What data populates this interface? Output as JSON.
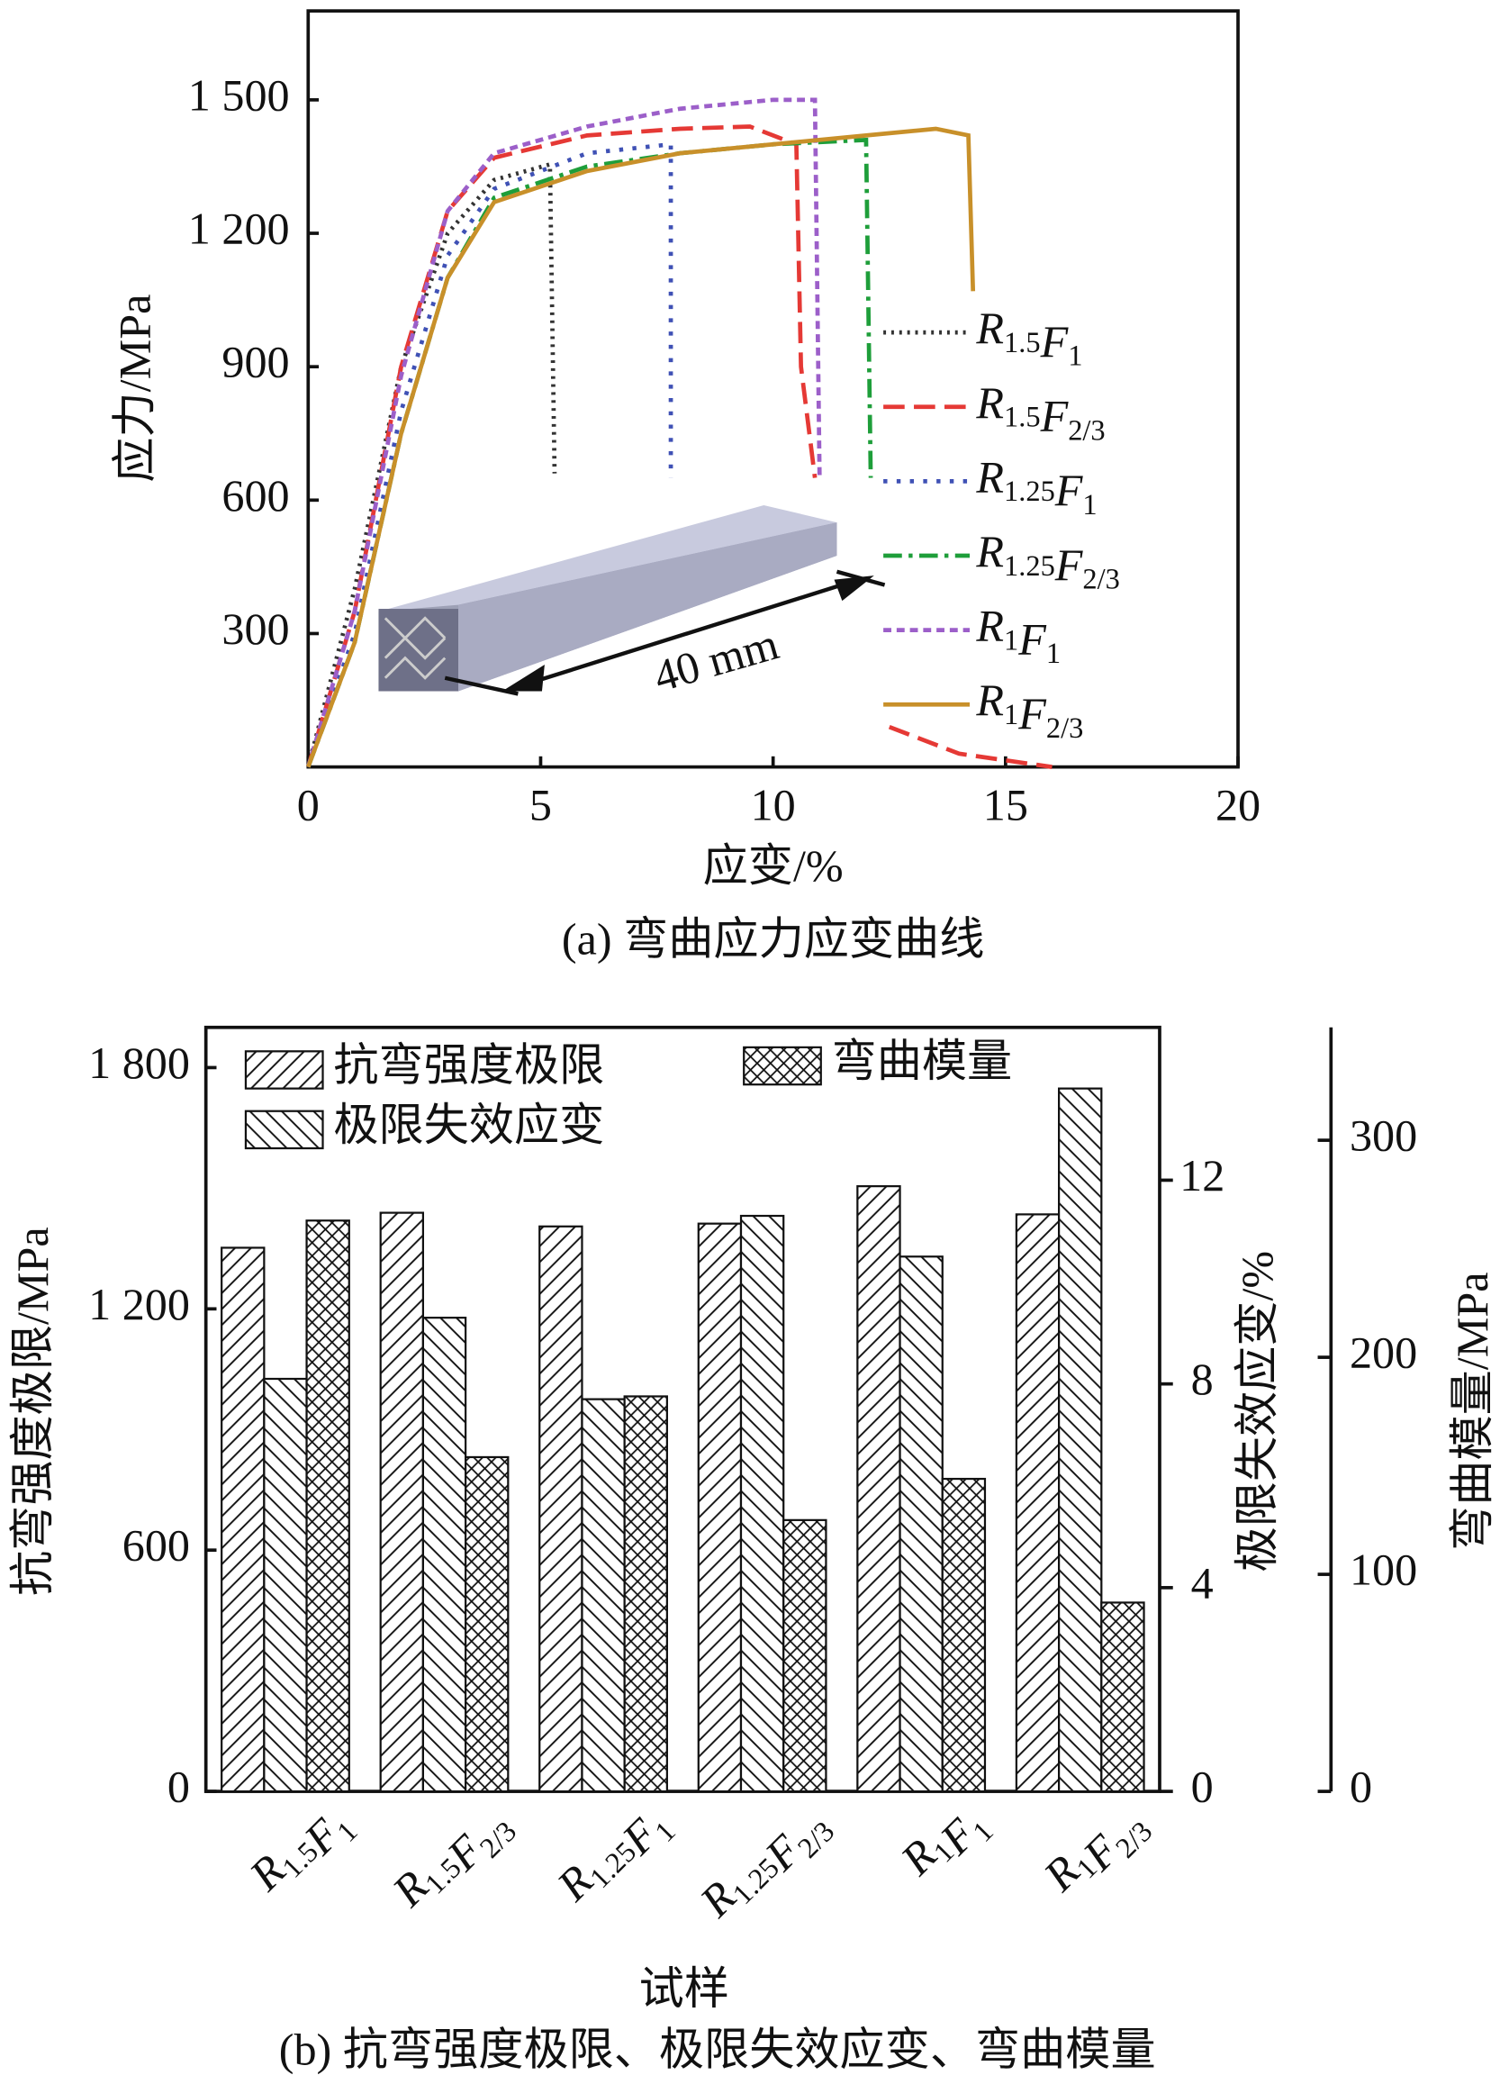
{
  "chart_data": [
    {
      "type": "line",
      "title": "(a) 弯曲应力应变曲线",
      "x_label": "应变/%",
      "y_label": "应力/MPa",
      "xlim": [
        0,
        20
      ],
      "xticks": [
        0,
        5,
        10,
        15,
        20
      ],
      "ylim": [
        0,
        1700
      ],
      "yticks": [
        {
          "value": 300,
          "label": "300"
        },
        {
          "value": 600,
          "label": "600"
        },
        {
          "value": 900,
          "label": "900"
        },
        {
          "value": 1200,
          "label": "1 200"
        },
        {
          "value": 1500,
          "label": "1 500"
        }
      ],
      "annotation": "40 mm",
      "series": [
        {
          "name": "R1.5F1",
          "color": "#333333",
          "dash": "dotted",
          "x": [
            0,
            1,
            2,
            3,
            4,
            5.2,
            5.3
          ],
          "values": [
            0,
            400,
            900,
            1200,
            1320,
            1355,
            660
          ]
        },
        {
          "name": "R1.5F2/3",
          "color": "#e53935",
          "dash": "dashed",
          "x": [
            0,
            1,
            2,
            3,
            4,
            6,
            8,
            9.5,
            10.5,
            10.6,
            10.9,
            null,
            12.5,
            14,
            16
          ],
          "values": [
            0,
            350,
            900,
            1250,
            1370,
            1420,
            1435,
            1440,
            1400,
            900,
            650,
            null,
            90,
            30,
            0
          ]
        },
        {
          "name": "R1.25F1",
          "color": "#3f51b5",
          "dash": "dotted-wide",
          "x": [
            0,
            1,
            2,
            3,
            4,
            6,
            7.8,
            7.8
          ],
          "values": [
            0,
            300,
            800,
            1150,
            1300,
            1380,
            1400,
            650
          ]
        },
        {
          "name": "R1.25F2/3",
          "color": "#1e9e3a",
          "dash": "dash-dot",
          "x": [
            0,
            1,
            2,
            3,
            4,
            6,
            8,
            10,
            12,
            12.1
          ],
          "values": [
            0,
            280,
            750,
            1100,
            1280,
            1350,
            1380,
            1400,
            1410,
            650
          ]
        },
        {
          "name": "R1F1",
          "color": "#9c5fc9",
          "dash": "short-dash",
          "x": [
            0,
            1,
            2,
            3,
            4,
            6,
            8,
            10,
            10.9,
            11
          ],
          "values": [
            0,
            350,
            880,
            1250,
            1380,
            1440,
            1480,
            1500,
            1500,
            650
          ]
        },
        {
          "name": "R1F2/3",
          "color": "#c8902a",
          "dash": "solid",
          "x": [
            0,
            1,
            2,
            3,
            4,
            6,
            8,
            10,
            12,
            13.5,
            14.2,
            14.3
          ],
          "values": [
            0,
            280,
            750,
            1100,
            1270,
            1340,
            1380,
            1400,
            1420,
            1435,
            1420,
            1070
          ]
        }
      ]
    },
    {
      "type": "bar",
      "title": "(b) 抗弯强度极限、极限失效应变、弯曲模量",
      "x_label": "试样",
      "y_label": "抗弯强度极限/MPa",
      "y2_label": "极限失效应变/%",
      "y3_label": "弯曲模量/MPa",
      "categories": [
        "R1.5F1",
        "R1.5F2/3",
        "R1.25F1",
        "R1.25F2/3",
        "R1F1",
        "R1F2/3"
      ],
      "ylim": [
        0,
        1900
      ],
      "yticks": [
        0,
        600,
        {
          "value": 1200,
          "label": "1 200"
        },
        {
          "value": 1800,
          "label": "1 800"
        }
      ],
      "y2lim": [
        0,
        15
      ],
      "y2ticks": [
        0,
        4,
        8,
        12
      ],
      "y3lim": [
        0,
        352
      ],
      "y3ticks": [
        0,
        100,
        200,
        300
      ],
      "series": [
        {
          "name": "抗弯强度极限",
          "hatch": "forward",
          "axis": "y",
          "values": [
            1352,
            1439,
            1405,
            1412,
            1505,
            1435
          ]
        },
        {
          "name": "极限失效应变",
          "hatch": "backward",
          "axis": "y2",
          "values": [
            8.1,
            9.3,
            7.7,
            11.3,
            10.5,
            13.8
          ]
        },
        {
          "name": "弯曲模量",
          "hatch": "cross",
          "axis": "y3",
          "values": [
            263,
            154,
            182,
            125,
            144,
            87
          ]
        }
      ]
    }
  ]
}
